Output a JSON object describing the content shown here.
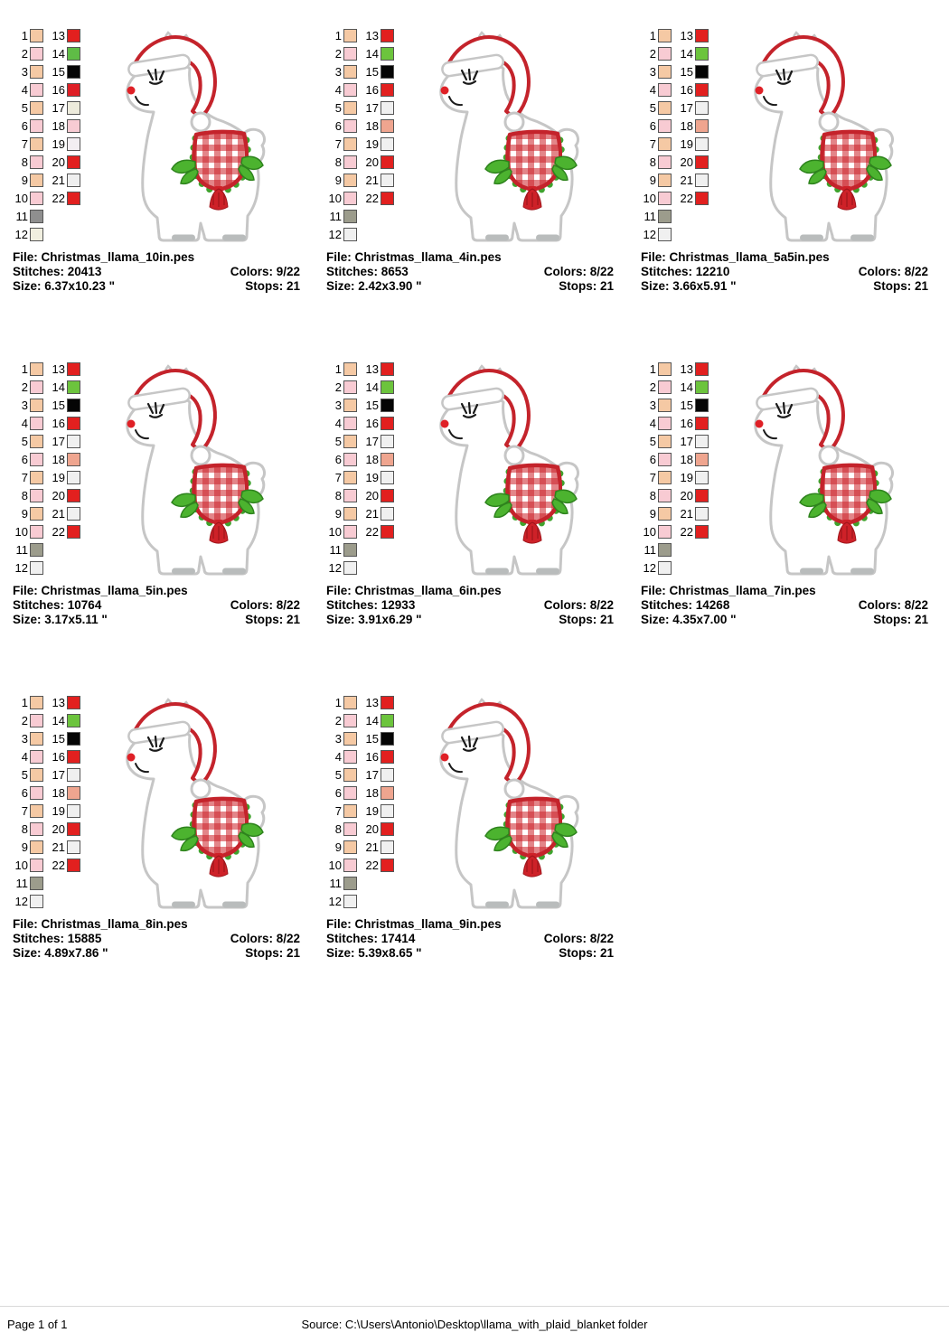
{
  "labels": {
    "file": "File:",
    "stitches": "Stitches:",
    "colors": "Colors:",
    "size": "Size:",
    "stops": "Stops:"
  },
  "palettes": {
    "A": {
      "left": [
        "#F5C9A4",
        "#F8CBD3",
        "#F5C9A4",
        "#F8CBD3",
        "#F5C9A4",
        "#F8CBD3",
        "#F5C9A4",
        "#F8CBD3",
        "#F5C9A4",
        "#F8CBD3",
        "#8F8F8F",
        "#F1EFE0"
      ],
      "right": [
        "#E2201F",
        "#5FBC46",
        "#050505",
        "#DF1F26",
        "#EDEBDC",
        "#F8CBD3",
        "#F3EEF2",
        "#E2201F",
        "#EFEFEF",
        "#E2201F"
      ]
    },
    "B": {
      "left": [
        "#F5C9A4",
        "#F8CBD3",
        "#F5C9A4",
        "#F8CBD3",
        "#F5C9A4",
        "#F8CBD3",
        "#F5C9A4",
        "#F8CBD3",
        "#F5C9A4",
        "#F8CBD3",
        "#9C9C8C",
        "#F0F0F0"
      ],
      "right": [
        "#E2201F",
        "#6CC43D",
        "#050505",
        "#E2201F",
        "#F0F0F0",
        "#EFA58F",
        "#F0F0F0",
        "#E2201F",
        "#F0F0F0",
        "#E2201F"
      ]
    }
  },
  "designs": [
    {
      "file": "Christmas_llama_10in.pes",
      "stitches": "20413",
      "colors": "9/22",
      "size": "6.37x10.23 \"",
      "stops": "21",
      "palette": "A"
    },
    {
      "file": "Christmas_llama_4in.pes",
      "stitches": "8653",
      "colors": "8/22",
      "size": "2.42x3.90 \"",
      "stops": "21",
      "palette": "B"
    },
    {
      "file": "Christmas_llama_5a5in.pes",
      "stitches": "12210",
      "colors": "8/22",
      "size": "3.66x5.91 \"",
      "stops": "21",
      "palette": "B"
    },
    {
      "file": "Christmas_llama_5in.pes",
      "stitches": "10764",
      "colors": "8/22",
      "size": "3.17x5.11 \"",
      "stops": "21",
      "palette": "B"
    },
    {
      "file": "Christmas_llama_6in.pes",
      "stitches": "12933",
      "colors": "8/22",
      "size": "3.91x6.29 \"",
      "stops": "21",
      "palette": "B"
    },
    {
      "file": "Christmas_llama_7in.pes",
      "stitches": "14268",
      "colors": "8/22",
      "size": "4.35x7.00 \"",
      "stops": "21",
      "palette": "B"
    },
    {
      "file": "Christmas_llama_8in.pes",
      "stitches": "15885",
      "colors": "8/22",
      "size": "4.89x7.86 \"",
      "stops": "21",
      "palette": "B"
    },
    {
      "file": "Christmas_llama_9in.pes",
      "stitches": "17414",
      "colors": "8/22",
      "size": "5.39x8.65 \"",
      "stops": "21",
      "palette": "B"
    }
  ],
  "art_colors": {
    "outline_gray": "#C6C6C6",
    "red": "#C4232B",
    "bright_red": "#DF2026",
    "green_trim": "#3FA32E",
    "leaf_green": "#4CB32F",
    "leaf_dark": "#2E831D",
    "tassel_red": "#CE2128",
    "tassel_dark": "#9E151B",
    "hoof_gray": "#B9BCBC",
    "ear_pink": "#F2B9C6"
  },
  "footer": {
    "page": "Page 1 of 1",
    "source": "Source: C:\\Users\\Antonio\\Desktop\\llama_with_plaid_blanket folder"
  }
}
